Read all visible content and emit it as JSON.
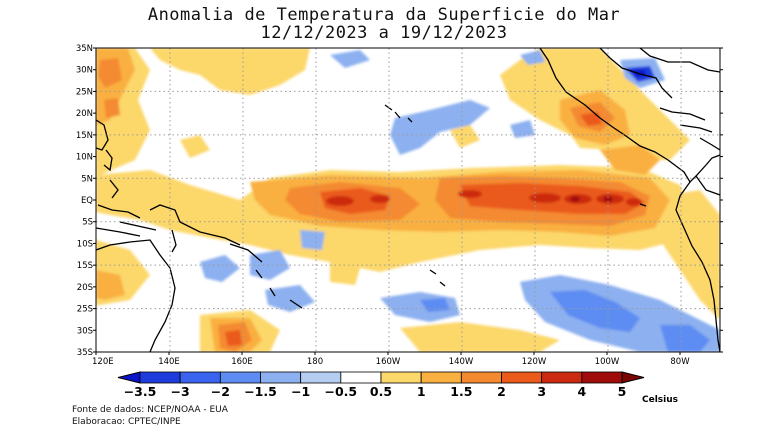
{
  "title": {
    "line1": "Anomalia de Temperatura da Superficie do Mar",
    "line2": "12/12/2023 a 19/12/2023"
  },
  "map": {
    "lat_labels": [
      "35N",
      "30N",
      "25N",
      "20N",
      "15N",
      "10N",
      "5N",
      "EQ",
      "5S",
      "10S",
      "15S",
      "20S",
      "25S",
      "30S",
      "35S"
    ],
    "lon_labels": [
      "120E",
      "140E",
      "160E",
      "180",
      "160W",
      "140W",
      "120W",
      "100W",
      "80W"
    ],
    "gridlines": true
  },
  "colorbar": {
    "labels": [
      "-3.5",
      "-3",
      "-2",
      "-1.5",
      "-1",
      "-0.5",
      "0.5",
      "1",
      "1.5",
      "2",
      "3",
      "4",
      "5"
    ],
    "colors": [
      "#0a14c8",
      "#1e3cdc",
      "#3a64ef",
      "#5d8cf2",
      "#8cb0f0",
      "#b6cdf2",
      "#ffffff",
      "#fcd76a",
      "#f9b040",
      "#f48a30",
      "#ea5a1a",
      "#cc2a10",
      "#a00c0a",
      "#7a0505"
    ],
    "unit": "Celsius"
  },
  "footer": {
    "source": "Fonte de dados: NCEP/NOAA - EUA",
    "credit": "Elaboracao: CPTEC/INPE"
  }
}
